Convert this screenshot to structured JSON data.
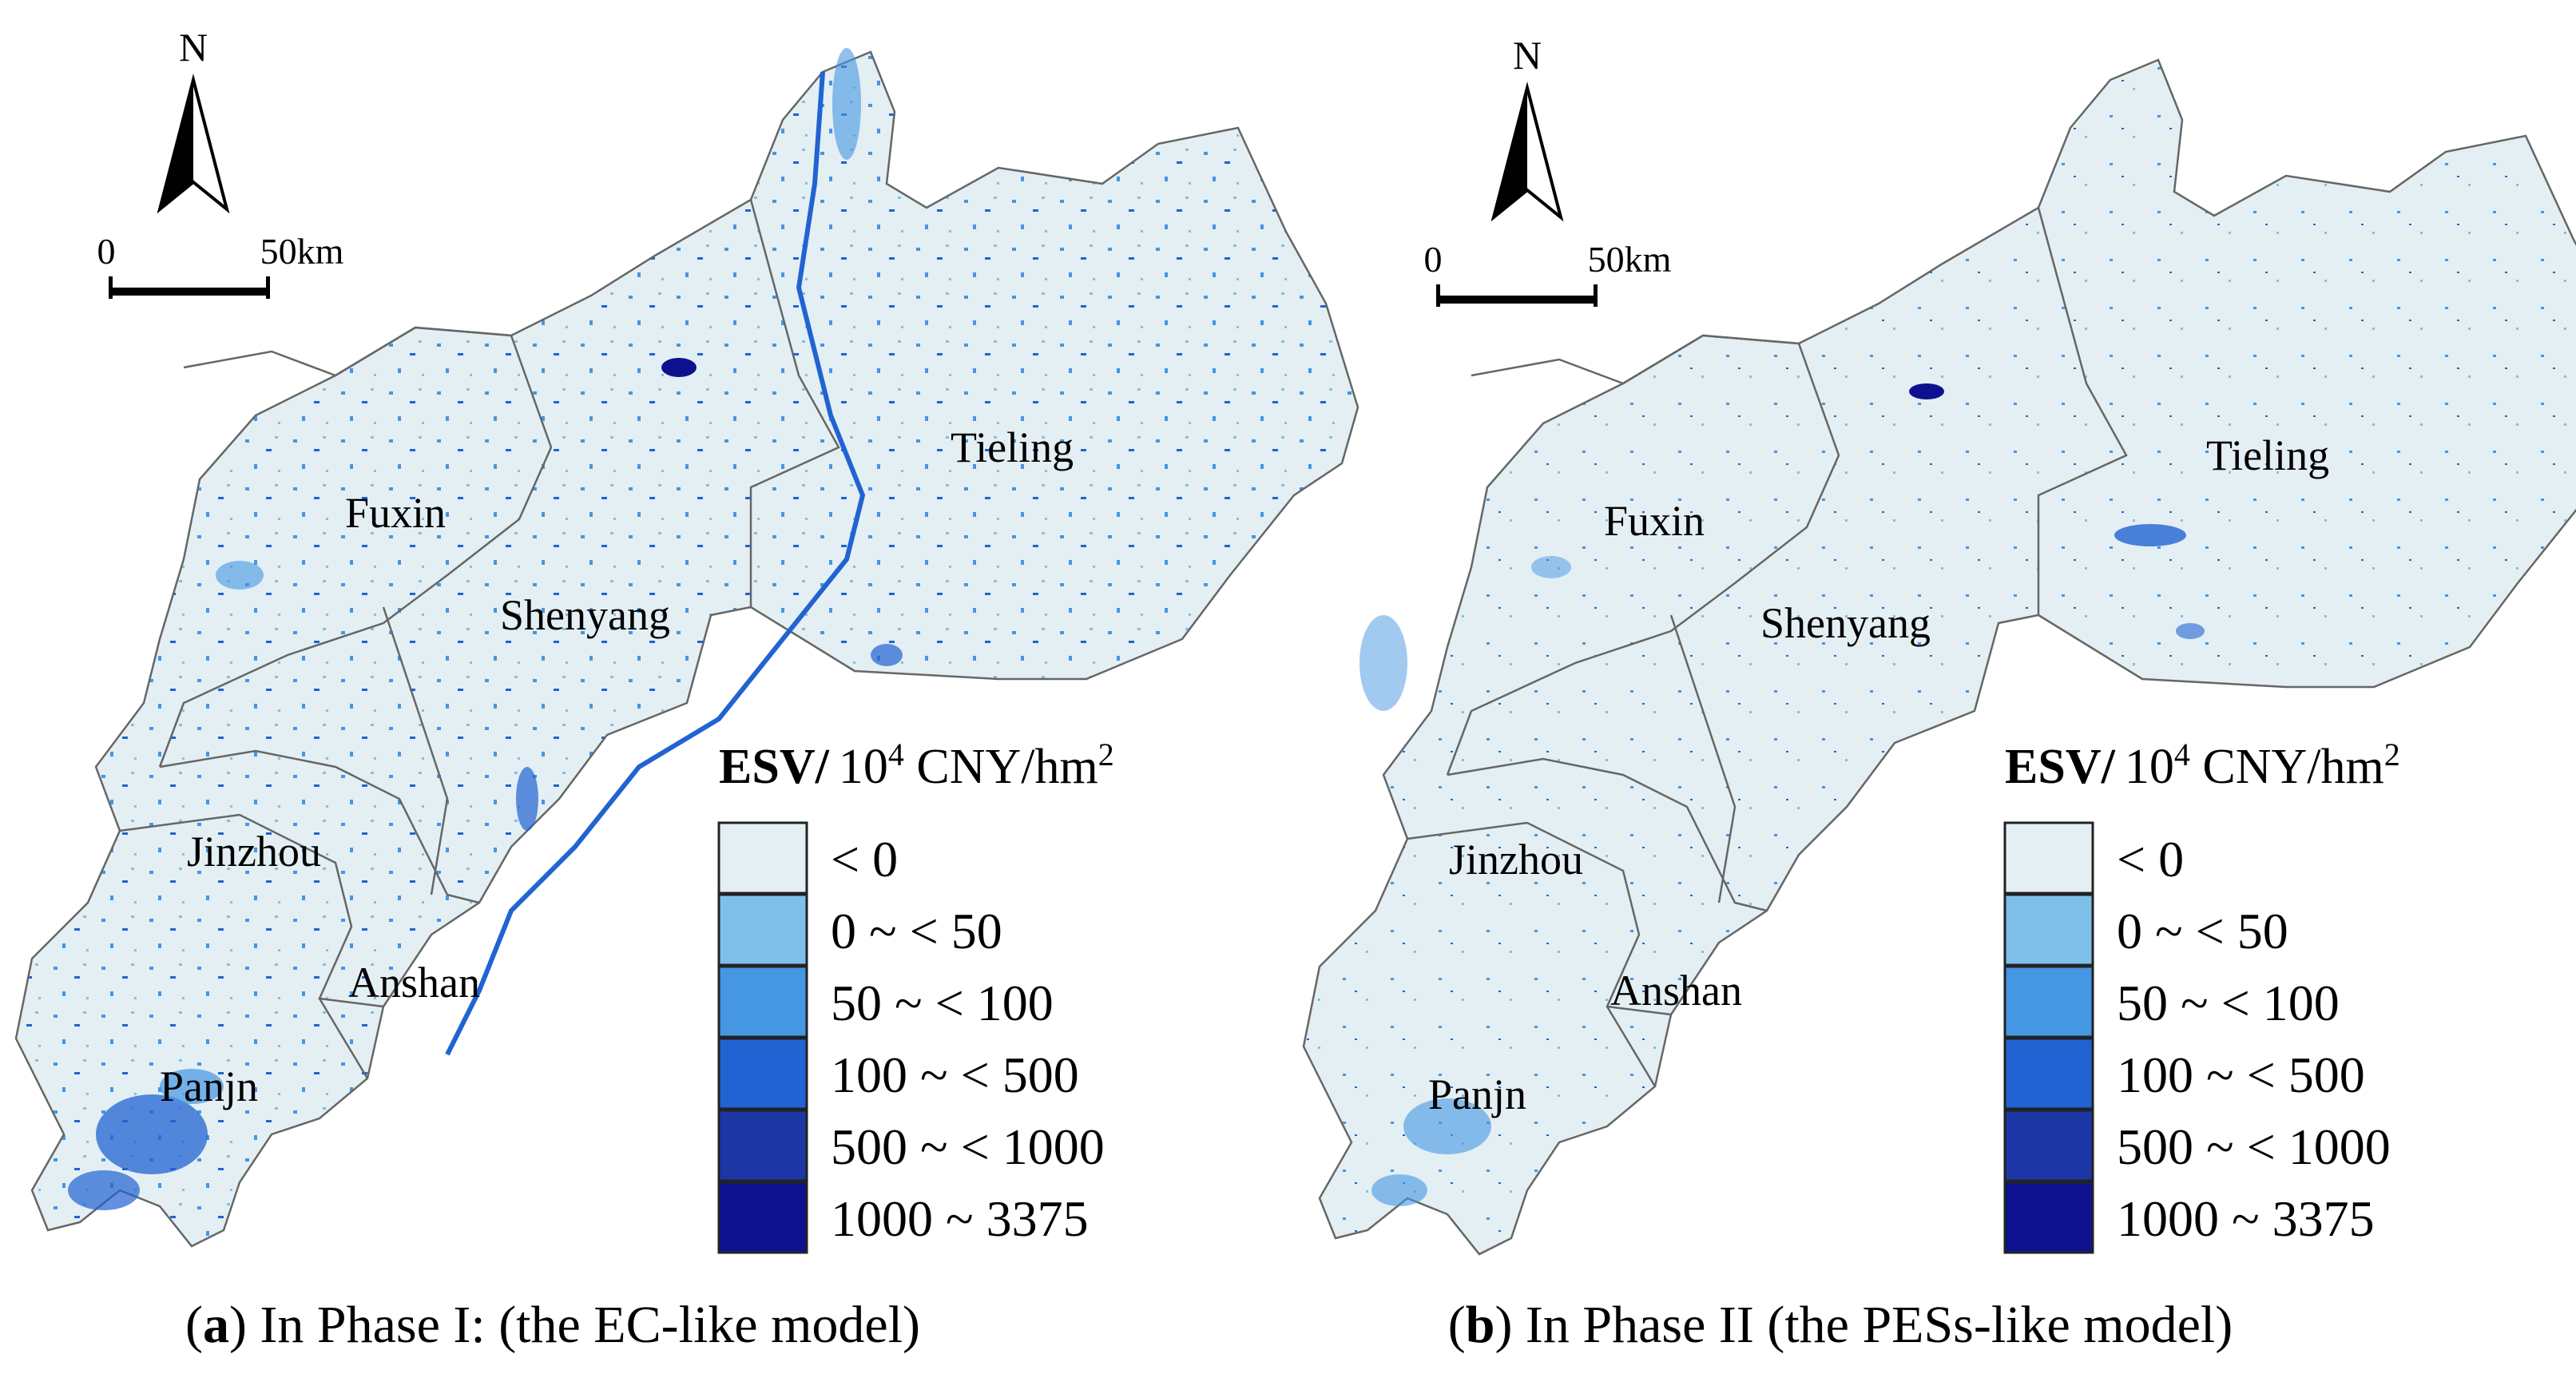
{
  "panels": [
    {
      "id": "a",
      "letter": "a",
      "caption": "In Phase I: (the EC-like model)",
      "north_label": "N",
      "scale": {
        "start": "0",
        "end": "50km"
      },
      "regions": [
        {
          "name": "Fuxin"
        },
        {
          "name": "Shenyang"
        },
        {
          "name": "Tieling"
        },
        {
          "name": "Jinzhou"
        },
        {
          "name": "Anshan"
        },
        {
          "name": "Panjn"
        }
      ],
      "legend": {
        "title_bold": "ESV/",
        "title_unit_base": "10",
        "title_unit_exp": "4",
        "title_unit_rest": " CNY/hm",
        "title_unit_exp2": "2",
        "classes": [
          {
            "label": "< 0",
            "color": "#e4eff3"
          },
          {
            "label": "0 ~  < 50",
            "color": "#7ec0ea"
          },
          {
            "label": "50 ~  < 100",
            "color": "#4596e3"
          },
          {
            "label": "100 ~  < 500",
            "color": "#2163d2"
          },
          {
            "label": "500 ~  < 1000",
            "color": "#1c36a6"
          },
          {
            "label": "1000 ~ 3375",
            "color": "#0d118f"
          }
        ]
      }
    },
    {
      "id": "b",
      "letter": "b",
      "caption": "In Phase II (the PESs-like model)",
      "north_label": "N",
      "scale": {
        "start": "0",
        "end": "50km"
      },
      "regions": [
        {
          "name": "Fuxin"
        },
        {
          "name": "Shenyang"
        },
        {
          "name": "Tieling"
        },
        {
          "name": "Jinzhou"
        },
        {
          "name": "Anshan"
        },
        {
          "name": "Panjn"
        }
      ],
      "legend": {
        "title_bold": "ESV/",
        "title_unit_base": "10",
        "title_unit_exp": "4",
        "title_unit_rest": " CNY/hm",
        "title_unit_exp2": "2",
        "classes": [
          {
            "label": "< 0",
            "color": "#e4eff3"
          },
          {
            "label": "0 ~  < 50",
            "color": "#7ec0ea"
          },
          {
            "label": "50 ~  < 100",
            "color": "#4596e3"
          },
          {
            "label": "100 ~  < 500",
            "color": "#2163d2"
          },
          {
            "label": "500 ~  < 1000",
            "color": "#1c36a6"
          },
          {
            "label": "1000 ~ 3375",
            "color": "#0d118f"
          }
        ]
      }
    }
  ]
}
